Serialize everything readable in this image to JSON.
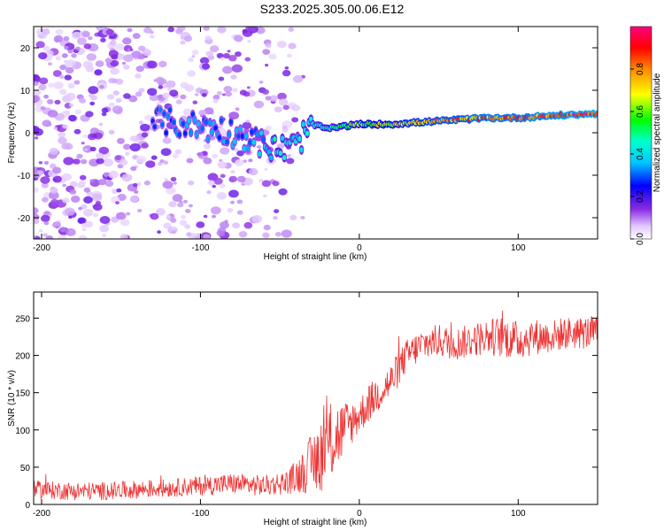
{
  "title": "S233.2025.305.00.06.E12",
  "chart_data": [
    {
      "type": "heatmap",
      "title": "S233.2025.305.00.06.E12",
      "xlabel": "Height of straight line (km)",
      "ylabel": "Frequency (Hz)",
      "xlim": [
        -205,
        150
      ],
      "ylim": [
        -25,
        25
      ],
      "xticks": [
        -200,
        -100,
        0,
        100
      ],
      "yticks": [
        -20,
        -10,
        0,
        10,
        20
      ],
      "colorbar": {
        "label": "Normalized spectral amplitude",
        "range": [
          0,
          1
        ],
        "ticks": [
          0.0,
          0.2,
          0.4,
          0.6,
          0.8
        ],
        "colors": [
          "#ffffff",
          "#d9b3ff",
          "#8a2be2",
          "#0000ff",
          "#00ffff",
          "#00ff00",
          "#ffff00",
          "#ff0000",
          "#ff007f"
        ]
      },
      "ridge": {
        "x": [
          -130,
          -110,
          -90,
          -70,
          -60,
          -50,
          -40,
          -30,
          -20,
          0,
          20,
          40,
          60,
          80,
          100,
          120,
          150
        ],
        "freq": [
          3,
          2,
          1,
          -1,
          -3,
          -4,
          -3,
          2,
          1,
          2,
          2,
          2.5,
          3,
          3.5,
          3.5,
          4,
          4.5
        ],
        "amplitude": [
          0.3,
          0.35,
          0.35,
          0.35,
          0.4,
          0.5,
          0.4,
          0.5,
          0.55,
          0.65,
          0.75,
          0.8,
          0.85,
          0.9,
          0.9,
          0.95,
          1.0
        ]
      },
      "noise_region_x": [
        -205,
        -35
      ]
    },
    {
      "type": "line",
      "xlabel": "Height of straight line (km)",
      "ylabel": "SNR (10 * v/v)",
      "xlim": [
        -205,
        150
      ],
      "ylim": [
        0,
        285
      ],
      "xticks": [
        -200,
        -100,
        0,
        100
      ],
      "yticks": [
        0,
        50,
        100,
        150,
        200,
        250
      ],
      "color": "#ee3333",
      "series": [
        {
          "name": "SNR",
          "x": [
            -205,
            -180,
            -160,
            -140,
            -120,
            -100,
            -80,
            -60,
            -45,
            -35,
            -25,
            -20,
            -15,
            -10,
            -5,
            0,
            10,
            20,
            30,
            40,
            50,
            60,
            70,
            80,
            90,
            100,
            110,
            120,
            130,
            140,
            150
          ],
          "y": [
            20,
            18,
            18,
            20,
            22,
            25,
            28,
            25,
            30,
            45,
            65,
            80,
            90,
            100,
            110,
            120,
            145,
            165,
            200,
            215,
            220,
            215,
            220,
            225,
            225,
            220,
            225,
            225,
            230,
            230,
            232
          ],
          "noise": [
            12,
            12,
            12,
            12,
            12,
            13,
            14,
            14,
            16,
            30,
            50,
            55,
            50,
            40,
            30,
            25,
            25,
            25,
            22,
            22,
            22,
            22,
            22,
            24,
            28,
            26,
            24,
            22,
            22,
            22,
            22
          ]
        }
      ]
    }
  ]
}
